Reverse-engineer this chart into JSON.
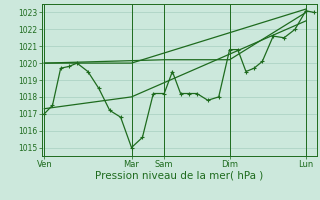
{
  "background_color": "#cce8dc",
  "grid_color": "#a8cfc0",
  "line_color": "#1e6b1e",
  "ylim": [
    1014.5,
    1023.5
  ],
  "yticks": [
    1015,
    1016,
    1017,
    1018,
    1019,
    1020,
    1021,
    1022,
    1023
  ],
  "xlabel": "Pression niveau de la mer( hPa )",
  "xlabel_fontsize": 7.5,
  "xtick_labels": [
    "Ven",
    "Mar",
    "Sam",
    "Dim",
    "Lun"
  ],
  "xtick_positions": [
    0,
    32,
    44,
    68,
    96
  ],
  "vline_positions": [
    0,
    32,
    44,
    68,
    96
  ],
  "series_main": {
    "x": [
      0,
      3,
      6,
      9,
      12,
      16,
      20,
      24,
      28,
      32,
      36,
      40,
      44,
      47,
      50,
      53,
      56,
      60,
      64,
      68,
      71,
      74,
      77,
      80,
      84,
      88,
      92,
      96,
      99
    ],
    "y": [
      1017.0,
      1017.5,
      1019.7,
      1019.8,
      1020.0,
      1019.5,
      1018.5,
      1017.2,
      1016.8,
      1015.0,
      1015.6,
      1018.2,
      1018.2,
      1019.5,
      1018.2,
      1018.2,
      1018.2,
      1017.8,
      1018.0,
      1020.8,
      1020.8,
      1019.5,
      1019.7,
      1020.1,
      1021.6,
      1021.5,
      1022.0,
      1023.1,
      1023.0
    ]
  },
  "series_upper": {
    "x": [
      0,
      32,
      96
    ],
    "y": [
      1020.0,
      1020.0,
      1023.2
    ]
  },
  "series_middle": {
    "x": [
      0,
      44,
      68,
      96
    ],
    "y": [
      1020.0,
      1020.2,
      1020.2,
      1023.0
    ]
  },
  "series_lower": {
    "x": [
      0,
      32,
      96
    ],
    "y": [
      1017.3,
      1018.0,
      1022.5
    ]
  },
  "figsize": [
    3.2,
    2.0
  ],
  "dpi": 100
}
